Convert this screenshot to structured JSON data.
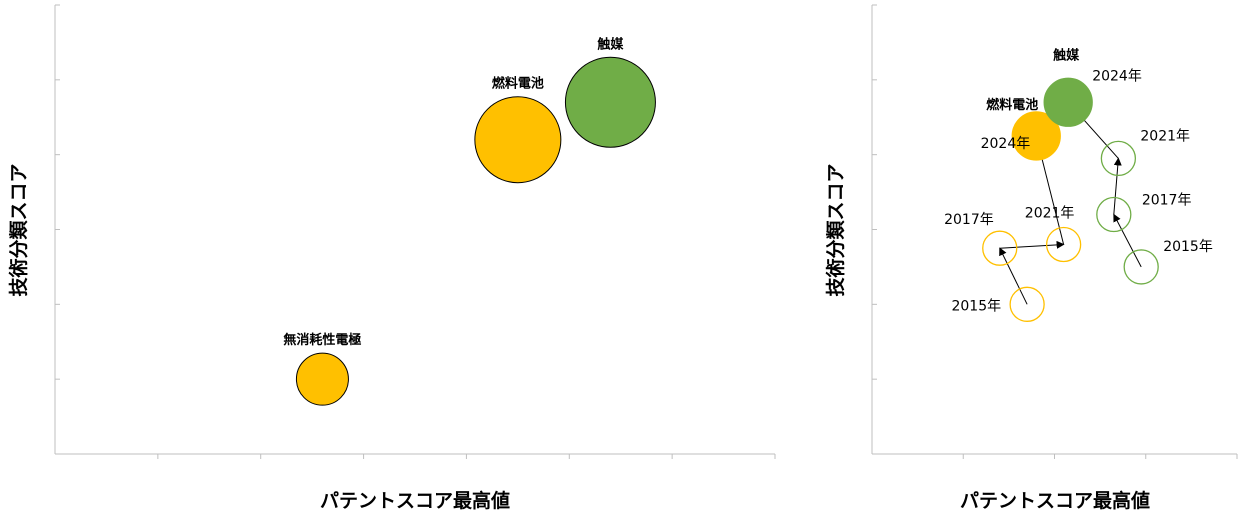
{
  "chart_data": [
    {
      "type": "scatter",
      "variant": "bubble",
      "xlabel": "パテントスコア最高値",
      "ylabel": "技術分類スコア",
      "grid": false,
      "show_tick_labels": false,
      "xlim": [
        0,
        7
      ],
      "ylim": [
        0,
        6
      ],
      "points": [
        {
          "label": "触媒",
          "x": 5.4,
          "y": 4.7,
          "r": 45,
          "color": "#70ad47"
        },
        {
          "label": "燃料電池",
          "x": 4.5,
          "y": 4.2,
          "r": 43,
          "color": "#ffc000"
        },
        {
          "label": "無消耗性電極",
          "x": 2.6,
          "y": 1.0,
          "r": 26,
          "color": "#ffc000"
        }
      ]
    },
    {
      "type": "scatter",
      "variant": "trajectory",
      "xlabel": "パテントスコア最高値",
      "ylabel": "技術分類スコア",
      "grid": false,
      "show_tick_labels": false,
      "xlim": [
        0,
        4
      ],
      "ylim": [
        0,
        6
      ],
      "series": [
        {
          "name": "燃料電池",
          "color": "#ffc000",
          "points": [
            {
              "year": "2015年",
              "x": 1.7,
              "y": 2.0
            },
            {
              "year": "2017年",
              "x": 1.4,
              "y": 2.75
            },
            {
              "year": "2021年",
              "x": 2.1,
              "y": 2.8
            },
            {
              "year": "2024年",
              "x": 1.8,
              "y": 4.25
            }
          ]
        },
        {
          "name": "触媒",
          "color": "#70ad47",
          "points": [
            {
              "year": "2015年",
              "x": 2.95,
              "y": 2.5
            },
            {
              "year": "2017年",
              "x": 2.65,
              "y": 3.2
            },
            {
              "year": "2021年",
              "x": 2.7,
              "y": 3.95
            },
            {
              "year": "2024年",
              "x": 2.15,
              "y": 4.7
            }
          ]
        }
      ]
    }
  ]
}
